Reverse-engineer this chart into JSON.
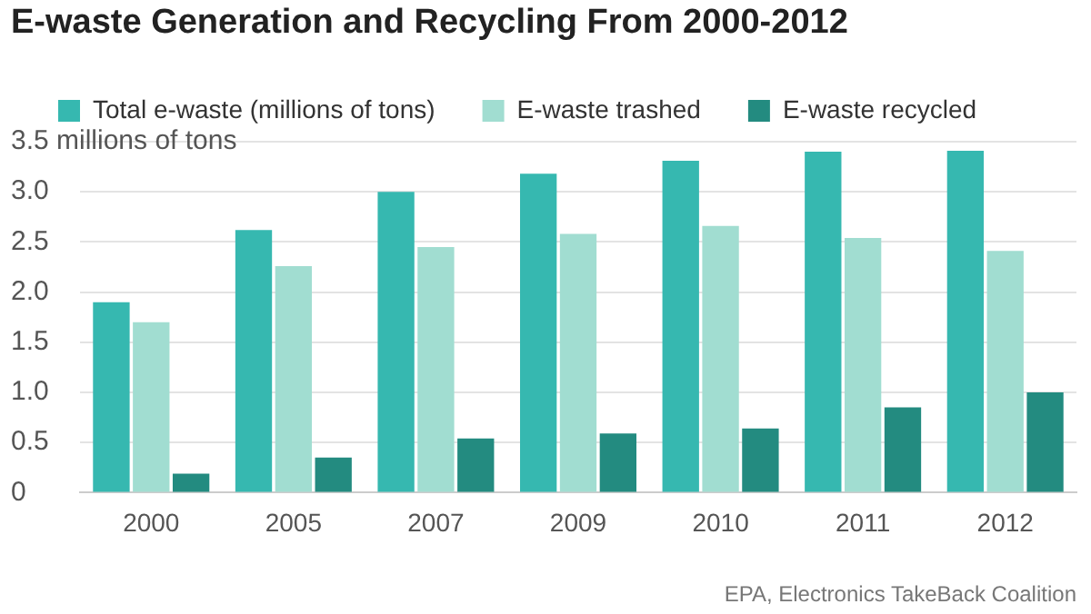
{
  "chart_data": {
    "type": "bar",
    "title": "E-waste Generation and Recycling From 2000-2012",
    "categories": [
      "2000",
      "2005",
      "2007",
      "2009",
      "2010",
      "2011",
      "2012"
    ],
    "series": [
      {
        "name": "Total e-waste (millions of tons)",
        "color": "#36b8b0",
        "values": [
          1.9,
          2.62,
          3.0,
          3.18,
          3.31,
          3.4,
          3.41
        ]
      },
      {
        "name": "E-waste trashed",
        "color": "#a1ddd1",
        "values": [
          1.7,
          2.26,
          2.45,
          2.58,
          2.66,
          2.54,
          2.41
        ]
      },
      {
        "name": "E-waste recycled",
        "color": "#238b80",
        "values": [
          0.19,
          0.35,
          0.54,
          0.59,
          0.64,
          0.85,
          1.0
        ]
      }
    ],
    "ylim": [
      0,
      3.5
    ],
    "yticks": [
      0,
      {
        "value": 0.5,
        "label": "0.5"
      },
      {
        "value": 1,
        "label": "1.0"
      },
      {
        "value": 1.5,
        "label": "1.5"
      },
      {
        "value": 2,
        "label": "2.0"
      },
      {
        "value": 2.5,
        "label": "2.5"
      },
      {
        "value": 3,
        "label": "3.0"
      },
      {
        "value": 3.5,
        "label": "3.5 millions of tons"
      }
    ],
    "grid": "y",
    "legend": "top left",
    "annotations": [
      "EPA, Electronics TakeBack Coalition"
    ]
  }
}
